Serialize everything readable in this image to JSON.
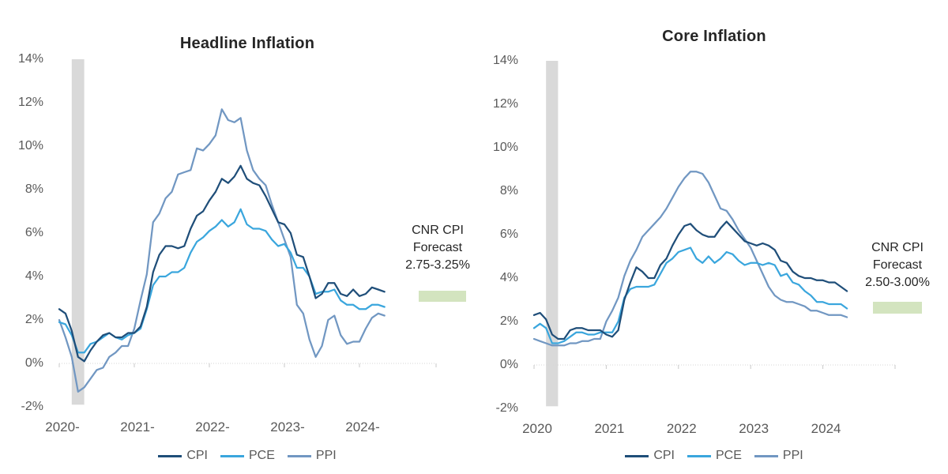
{
  "page": {
    "background": "#ffffff"
  },
  "colors": {
    "cpi": "#1f4e79",
    "pce": "#3aa6dd",
    "ppi": "#7197c2",
    "recession_band": "#d9d9d9",
    "forecast_box": "#d3e4bf",
    "axis_line": "#d6d6d6",
    "axis_tick": "#c9c9c9",
    "label_text": "#595959",
    "title_text": "#262626"
  },
  "chart_data": [
    {
      "type": "line",
      "title": "Headline Inflation",
      "x_start": "2020-01",
      "x_end": "2024-05",
      "x_unit": "month",
      "ylim": [
        -2,
        14
      ],
      "ytick_labels": [
        "14%",
        "12%",
        "10%",
        "8%",
        "6%",
        "4%",
        "2%",
        "0%",
        "-2%"
      ],
      "xtick_labels": [
        "2020-",
        "2021-",
        "2022-",
        "2023-",
        "2024-"
      ],
      "grid": "0%-axis only, dotted",
      "legend_position": "bottom-center",
      "recession_band": {
        "start_index": 2,
        "end_index": 4
      },
      "series": [
        {
          "name": "CPI",
          "color_key": "cpi",
          "values": [
            2.5,
            2.3,
            1.5,
            0.3,
            0.1,
            0.6,
            1.0,
            1.3,
            1.4,
            1.2,
            1.2,
            1.4,
            1.4,
            1.7,
            2.6,
            4.2,
            5.0,
            5.4,
            5.4,
            5.3,
            5.4,
            6.2,
            6.8,
            7.0,
            7.5,
            7.9,
            8.5,
            8.3,
            8.6,
            9.1,
            8.5,
            8.3,
            8.2,
            7.7,
            7.1,
            6.5,
            6.4,
            6.0,
            5.0,
            4.9,
            4.0,
            3.0,
            3.2,
            3.7,
            3.7,
            3.2,
            3.1,
            3.4,
            3.1,
            3.2,
            3.5,
            3.4,
            3.3
          ]
        },
        {
          "name": "PCE",
          "color_key": "pce",
          "values": [
            1.9,
            1.8,
            1.3,
            0.5,
            0.5,
            0.9,
            1.0,
            1.2,
            1.4,
            1.2,
            1.1,
            1.3,
            1.4,
            1.6,
            2.5,
            3.6,
            4.0,
            4.0,
            4.2,
            4.2,
            4.4,
            5.1,
            5.6,
            5.8,
            6.1,
            6.3,
            6.6,
            6.3,
            6.5,
            7.1,
            6.4,
            6.2,
            6.2,
            6.1,
            5.7,
            5.4,
            5.5,
            5.1,
            4.4,
            4.4,
            4.0,
            3.2,
            3.3,
            3.3,
            3.4,
            2.9,
            2.7,
            2.7,
            2.5,
            2.5,
            2.7,
            2.7,
            2.6
          ]
        },
        {
          "name": "PPI",
          "color_key": "ppi",
          "values": [
            2.0,
            1.2,
            0.3,
            -1.3,
            -1.1,
            -0.7,
            -0.3,
            -0.2,
            0.3,
            0.5,
            0.8,
            0.8,
            1.6,
            2.9,
            4.1,
            6.5,
            6.9,
            7.6,
            7.9,
            8.7,
            8.8,
            8.9,
            9.9,
            9.8,
            10.1,
            10.5,
            11.7,
            11.2,
            11.1,
            11.3,
            9.8,
            8.9,
            8.5,
            8.2,
            7.3,
            6.5,
            5.7,
            4.9,
            2.7,
            2.3,
            1.1,
            0.3,
            0.8,
            2.0,
            2.2,
            1.3,
            0.9,
            1.0,
            1.0,
            1.6,
            2.1,
            2.3,
            2.2
          ]
        }
      ],
      "annotation": {
        "lines": [
          "CNR CPI",
          "Forecast",
          "2.75-3.25%"
        ],
        "box_value_range": [
          2.75,
          3.25
        ]
      }
    },
    {
      "type": "line",
      "title": "Core Inflation",
      "x_start": "2020-01",
      "x_end": "2024-05",
      "x_unit": "month",
      "ylim": [
        -2,
        14
      ],
      "ytick_labels": [
        "14%",
        "12%",
        "10%",
        "8%",
        "6%",
        "4%",
        "2%",
        "0%",
        "-2%"
      ],
      "xtick_labels": [
        "2020",
        "2021",
        "2022",
        "2023",
        "2024"
      ],
      "grid": "0%-axis only, dotted",
      "legend_position": "bottom-center",
      "recession_band": {
        "start_index": 2,
        "end_index": 4
      },
      "series": [
        {
          "name": "CPI",
          "color_key": "cpi",
          "values": [
            2.3,
            2.4,
            2.1,
            1.4,
            1.2,
            1.2,
            1.6,
            1.7,
            1.7,
            1.6,
            1.6,
            1.6,
            1.4,
            1.3,
            1.6,
            3.0,
            3.8,
            4.5,
            4.3,
            4.0,
            4.0,
            4.6,
            4.9,
            5.5,
            6.0,
            6.4,
            6.5,
            6.2,
            6.0,
            5.9,
            5.9,
            6.3,
            6.6,
            6.3,
            6.0,
            5.7,
            5.6,
            5.5,
            5.6,
            5.5,
            5.3,
            4.8,
            4.7,
            4.3,
            4.1,
            4.0,
            4.0,
            3.9,
            3.9,
            3.8,
            3.8,
            3.6,
            3.4
          ]
        },
        {
          "name": "PCE",
          "color_key": "pce",
          "values": [
            1.7,
            1.9,
            1.7,
            1.0,
            1.0,
            1.1,
            1.3,
            1.5,
            1.5,
            1.4,
            1.4,
            1.5,
            1.5,
            1.5,
            2.0,
            3.1,
            3.5,
            3.6,
            3.6,
            3.6,
            3.7,
            4.2,
            4.7,
            4.9,
            5.2,
            5.3,
            5.4,
            4.9,
            4.7,
            5.0,
            4.7,
            4.9,
            5.2,
            5.1,
            4.8,
            4.6,
            4.7,
            4.7,
            4.6,
            4.7,
            4.6,
            4.1,
            4.2,
            3.8,
            3.7,
            3.4,
            3.2,
            2.9,
            2.9,
            2.8,
            2.8,
            2.8,
            2.6
          ]
        },
        {
          "name": "PPI",
          "color_key": "ppi",
          "values": [
            1.2,
            1.1,
            1.0,
            0.9,
            0.9,
            0.9,
            1.0,
            1.0,
            1.1,
            1.1,
            1.2,
            1.2,
            2.0,
            2.5,
            3.1,
            4.1,
            4.8,
            5.3,
            5.9,
            6.2,
            6.5,
            6.8,
            7.2,
            7.7,
            8.2,
            8.6,
            8.9,
            8.9,
            8.8,
            8.4,
            7.8,
            7.2,
            7.1,
            6.7,
            6.2,
            5.8,
            5.4,
            4.8,
            4.2,
            3.6,
            3.2,
            3.0,
            2.9,
            2.9,
            2.8,
            2.7,
            2.5,
            2.5,
            2.4,
            2.3,
            2.3,
            2.3,
            2.2
          ]
        }
      ],
      "annotation": {
        "lines": [
          "CNR CPI",
          "Forecast",
          "2.50-3.00%"
        ],
        "box_value_range": [
          2.5,
          3.0
        ]
      }
    }
  ]
}
